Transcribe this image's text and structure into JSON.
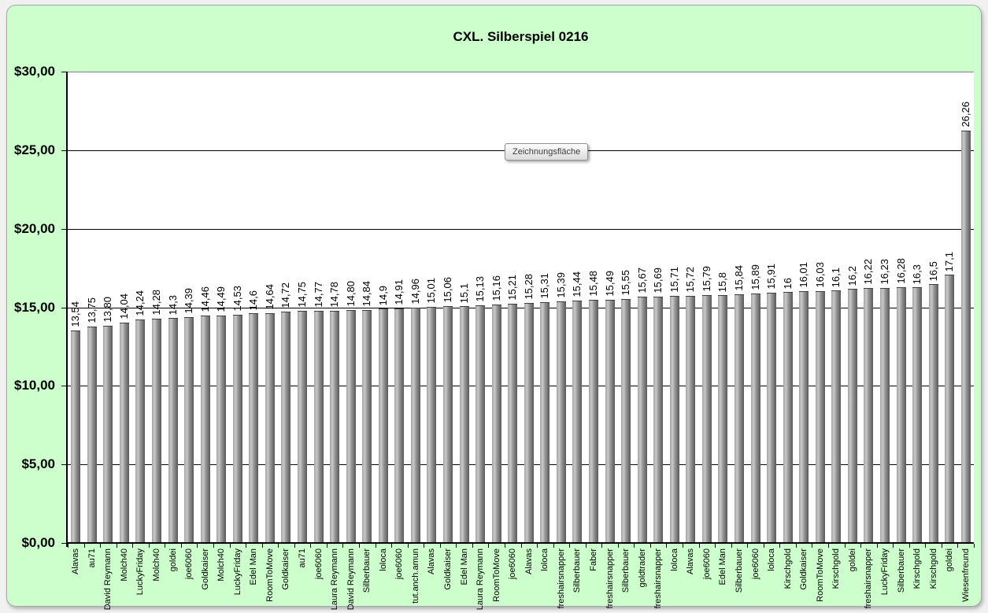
{
  "chart": {
    "title": "CXL. Silberspiel 0216",
    "tooltip": "Zeichnungsfläche",
    "colors": {
      "frame_background": "#ccffcc",
      "plot_background": "#ffffff",
      "gridline": "#000000",
      "top_border": "#808080",
      "axis": "#000000",
      "bar_gradient_left": "#a3a3a3",
      "bar_gradient_highlight": "#c9c9c9",
      "bar_gradient_mid": "#999999",
      "bar_gradient_right": "#585858"
    }
  },
  "chart_data": {
    "type": "bar",
    "title": "CXL. Silberspiel 0216",
    "xlabel": "",
    "ylabel": "",
    "ylim": [
      0,
      30
    ],
    "y_tick_step": 5,
    "y_tick_labels": [
      "$0,00",
      "$5,00",
      "$10,00",
      "$15,00",
      "$20,00",
      "$25,00",
      "$30,00"
    ],
    "grid": true,
    "legend": false,
    "categories": [
      "Alavas",
      "au71",
      "David Reymann",
      "Molch40",
      "LuckyFriday",
      "Molch40",
      "goldei",
      "joe6060",
      "Goldkaiser",
      "Molch40",
      "LuckyFriday",
      "Edel Man",
      "RoomToMove",
      "Goldkaiser",
      "au71",
      "joe6060",
      "Laura Reymann",
      "David Reymann",
      "Silberbauer",
      "loloca",
      "joe6060",
      "tut.anch.amun",
      "Alavas",
      "Goldkaiser",
      "Edel Man",
      "Laura Reymann",
      "RoomToMove",
      "joe6060",
      "Alavas",
      "loloca",
      "freshairsnapper",
      "Silberbauer",
      "Faber",
      "freshairsnapper",
      "Silberbauer",
      "goldtrader",
      "freshairsnapper",
      "loloca",
      "Alavas",
      "joe6060",
      "Edel Man",
      "Silberbauer",
      "joe6060",
      "loloca",
      "Kirschgold",
      "Goldkaiser",
      "RoomToMove",
      "Kirschgold",
      "goldei",
      "freshairsnapper",
      "LuckyFriday",
      "Silberbauer",
      "Kirschgold",
      "Kirschgold",
      "goldei",
      "Wiesenfreund"
    ],
    "values": [
      13.54,
      13.75,
      13.8,
      14.04,
      14.24,
      14.28,
      14.3,
      14.39,
      14.46,
      14.49,
      14.53,
      14.6,
      14.64,
      14.72,
      14.75,
      14.77,
      14.78,
      14.8,
      14.84,
      14.9,
      14.91,
      14.96,
      15.01,
      15.06,
      15.1,
      15.13,
      15.16,
      15.21,
      15.28,
      15.31,
      15.39,
      15.44,
      15.48,
      15.49,
      15.55,
      15.67,
      15.69,
      15.71,
      15.72,
      15.79,
      15.8,
      15.84,
      15.89,
      15.91,
      16,
      16.01,
      16.03,
      16.1,
      16.2,
      16.22,
      16.23,
      16.28,
      16.3,
      16.5,
      17.1,
      26.26
    ],
    "value_labels": [
      "13,54",
      "13,75",
      "13,80",
      "14,04",
      "14,24",
      "14,28",
      "14,3",
      "14,39",
      "14,46",
      "14,49",
      "14,53",
      "14,6",
      "14,64",
      "14,72",
      "14,75",
      "14,77",
      "14,78",
      "14,80",
      "14,84",
      "14,9",
      "14,91",
      "14,96",
      "15,01",
      "15,06",
      "15,1",
      "15,13",
      "15,16",
      "15,21",
      "15,28",
      "15,31",
      "15,39",
      "15,44",
      "15,48",
      "15,49",
      "15,55",
      "15,67",
      "15,69",
      "15,71",
      "15,72",
      "15,79",
      "15,8",
      "15,84",
      "15,89",
      "15,91",
      "16",
      "16,01",
      "16,03",
      "16,1",
      "16,2",
      "16,22",
      "16,23",
      "16,28",
      "16,3",
      "16,5",
      "17,1",
      "26,26"
    ]
  }
}
